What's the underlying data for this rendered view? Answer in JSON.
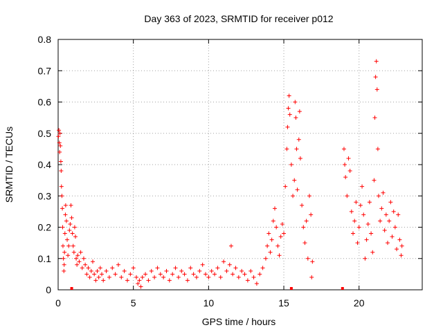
{
  "chart_data": {
    "type": "scatter",
    "title": "Day 363 of 2023, SRMTID for receiver p012",
    "xlabel": "GPS time / hours",
    "ylabel": "SRMTID / TECUs",
    "xlim": [
      0,
      24.2
    ],
    "ylim": [
      0,
      0.8
    ],
    "xticks": [
      0,
      5,
      10,
      15,
      20
    ],
    "xtick_labels": [
      "0",
      "5",
      "10",
      "15",
      "20"
    ],
    "yticks": [
      0,
      0.1,
      0.2,
      0.3,
      0.4,
      0.5,
      0.6,
      0.7,
      0.8
    ],
    "ytick_labels": [
      "0",
      "0.1",
      "0.2",
      "0.3",
      "0.4",
      "0.5",
      "0.6",
      "0.7",
      "0.8"
    ],
    "grid": true,
    "color": "#ff0000",
    "marker": "+",
    "series": [
      {
        "name": "SRMTID",
        "points": [
          [
            0.02,
            0.49
          ],
          [
            0.05,
            0.51
          ],
          [
            0.08,
            0.47
          ],
          [
            0.1,
            0.44
          ],
          [
            0.12,
            0.5
          ],
          [
            0.15,
            0.46
          ],
          [
            0.18,
            0.41
          ],
          [
            0.2,
            0.38
          ],
          [
            0.22,
            0.33
          ],
          [
            0.25,
            0.3
          ],
          [
            0.28,
            0.26
          ],
          [
            0.3,
            0.2
          ],
          [
            0.32,
            0.14
          ],
          [
            0.35,
            0.1
          ],
          [
            0.38,
            0.06
          ],
          [
            0.4,
            0.08
          ],
          [
            0.42,
            0.12
          ],
          [
            0.45,
            0.18
          ],
          [
            0.48,
            0.24
          ],
          [
            0.5,
            0.27
          ],
          [
            0.55,
            0.22
          ],
          [
            0.6,
            0.16
          ],
          [
            0.65,
            0.11
          ],
          [
            0.7,
            0.14
          ],
          [
            0.75,
            0.19
          ],
          [
            0.8,
            0.21
          ],
          [
            0.85,
            0.27
          ],
          [
            0.9,
            0.23
          ],
          [
            0.95,
            0.18
          ],
          [
            1.0,
            0.14
          ],
          [
            1.05,
            0.12
          ],
          [
            1.1,
            0.2
          ],
          [
            1.15,
            0.17
          ],
          [
            1.2,
            0.1
          ],
          [
            1.25,
            0.08
          ],
          [
            1.3,
            0.11
          ],
          [
            1.4,
            0.09
          ],
          [
            1.5,
            0.12
          ],
          [
            1.6,
            0.07
          ],
          [
            1.7,
            0.1
          ],
          [
            1.8,
            0.08
          ],
          [
            1.9,
            0.05
          ],
          [
            2.0,
            0.07
          ],
          [
            2.1,
            0.04
          ],
          [
            2.2,
            0.06
          ],
          [
            2.3,
            0.09
          ],
          [
            2.4,
            0.05
          ],
          [
            2.5,
            0.03
          ],
          [
            2.6,
            0.06
          ],
          [
            2.7,
            0.04
          ],
          [
            2.8,
            0.07
          ],
          [
            2.9,
            0.05
          ],
          [
            3.0,
            0.03
          ],
          [
            3.2,
            0.06
          ],
          [
            3.4,
            0.04
          ],
          [
            3.6,
            0.07
          ],
          [
            3.8,
            0.05
          ],
          [
            4.0,
            0.08
          ],
          [
            4.2,
            0.04
          ],
          [
            4.4,
            0.06
          ],
          [
            4.6,
            0.03
          ],
          [
            4.8,
            0.05
          ],
          [
            5.0,
            0.07
          ],
          [
            5.2,
            0.04
          ],
          [
            5.3,
            0.02
          ],
          [
            5.4,
            0.03
          ],
          [
            5.5,
            0.01
          ],
          [
            5.6,
            0.04
          ],
          [
            5.8,
            0.05
          ],
          [
            6.0,
            0.03
          ],
          [
            6.2,
            0.06
          ],
          [
            6.4,
            0.04
          ],
          [
            6.6,
            0.07
          ],
          [
            6.8,
            0.05
          ],
          [
            7.0,
            0.04
          ],
          [
            7.2,
            0.06
          ],
          [
            7.4,
            0.03
          ],
          [
            7.6,
            0.05
          ],
          [
            7.8,
            0.07
          ],
          [
            8.0,
            0.04
          ],
          [
            8.2,
            0.06
          ],
          [
            8.4,
            0.05
          ],
          [
            8.6,
            0.03
          ],
          [
            8.8,
            0.07
          ],
          [
            9.0,
            0.05
          ],
          [
            9.2,
            0.04
          ],
          [
            9.4,
            0.06
          ],
          [
            9.6,
            0.08
          ],
          [
            9.8,
            0.05
          ],
          [
            10.0,
            0.04
          ],
          [
            10.2,
            0.06
          ],
          [
            10.4,
            0.05
          ],
          [
            10.6,
            0.07
          ],
          [
            10.8,
            0.04
          ],
          [
            11.0,
            0.09
          ],
          [
            11.2,
            0.06
          ],
          [
            11.4,
            0.08
          ],
          [
            11.5,
            0.14
          ],
          [
            11.6,
            0.05
          ],
          [
            11.8,
            0.07
          ],
          [
            12.0,
            0.04
          ],
          [
            12.2,
            0.06
          ],
          [
            12.4,
            0.05
          ],
          [
            12.6,
            0.03
          ],
          [
            12.8,
            0.06
          ],
          [
            13.0,
            0.04
          ],
          [
            13.2,
            0.02
          ],
          [
            13.4,
            0.05
          ],
          [
            13.6,
            0.07
          ],
          [
            13.8,
            0.1
          ],
          [
            13.9,
            0.14
          ],
          [
            14.0,
            0.18
          ],
          [
            14.1,
            0.12
          ],
          [
            14.2,
            0.16
          ],
          [
            14.3,
            0.22
          ],
          [
            14.4,
            0.26
          ],
          [
            14.5,
            0.2
          ],
          [
            14.6,
            0.14
          ],
          [
            14.7,
            0.11
          ],
          [
            14.8,
            0.17
          ],
          [
            14.9,
            0.21
          ],
          [
            15.0,
            0.18
          ],
          [
            15.1,
            0.33
          ],
          [
            15.2,
            0.45
          ],
          [
            15.25,
            0.52
          ],
          [
            15.3,
            0.58
          ],
          [
            15.35,
            0.62
          ],
          [
            15.4,
            0.56
          ],
          [
            15.5,
            0.4
          ],
          [
            15.6,
            0.3
          ],
          [
            15.7,
            0.35
          ],
          [
            15.75,
            0.6
          ],
          [
            15.8,
            0.55
          ],
          [
            15.85,
            0.45
          ],
          [
            15.9,
            0.32
          ],
          [
            16.0,
            0.48
          ],
          [
            16.05,
            0.57
          ],
          [
            16.1,
            0.42
          ],
          [
            16.2,
            0.27
          ],
          [
            16.3,
            0.2
          ],
          [
            16.4,
            0.15
          ],
          [
            16.5,
            0.22
          ],
          [
            16.6,
            0.1
          ],
          [
            16.7,
            0.3
          ],
          [
            16.8,
            0.24
          ],
          [
            16.85,
            0.04
          ],
          [
            16.9,
            0.09
          ],
          [
            19.0,
            0.45
          ],
          [
            19.05,
            0.4
          ],
          [
            19.1,
            0.36
          ],
          [
            19.2,
            0.3
          ],
          [
            19.3,
            0.42
          ],
          [
            19.4,
            0.38
          ],
          [
            19.5,
            0.25
          ],
          [
            19.6,
            0.18
          ],
          [
            19.7,
            0.22
          ],
          [
            19.8,
            0.28
          ],
          [
            19.9,
            0.15
          ],
          [
            20.0,
            0.2
          ],
          [
            20.1,
            0.27
          ],
          [
            20.2,
            0.33
          ],
          [
            20.3,
            0.24
          ],
          [
            20.4,
            0.1
          ],
          [
            20.5,
            0.16
          ],
          [
            20.6,
            0.21
          ],
          [
            20.7,
            0.28
          ],
          [
            20.8,
            0.18
          ],
          [
            20.9,
            0.12
          ],
          [
            21.0,
            0.35
          ],
          [
            21.05,
            0.55
          ],
          [
            21.1,
            0.68
          ],
          [
            21.15,
            0.73
          ],
          [
            21.2,
            0.64
          ],
          [
            21.25,
            0.45
          ],
          [
            21.3,
            0.3
          ],
          [
            21.4,
            0.22
          ],
          [
            21.5,
            0.26
          ],
          [
            21.6,
            0.31
          ],
          [
            21.7,
            0.19
          ],
          [
            21.8,
            0.24
          ],
          [
            21.9,
            0.15
          ],
          [
            22.0,
            0.22
          ],
          [
            22.1,
            0.28
          ],
          [
            22.2,
            0.17
          ],
          [
            22.3,
            0.25
          ],
          [
            22.4,
            0.2
          ],
          [
            22.5,
            0.13
          ],
          [
            22.6,
            0.24
          ],
          [
            22.7,
            0.16
          ],
          [
            22.8,
            0.11
          ],
          [
            22.85,
            0.14
          ]
        ]
      }
    ],
    "gap_markers": [
      0.9,
      15.5,
      18.9
    ]
  }
}
